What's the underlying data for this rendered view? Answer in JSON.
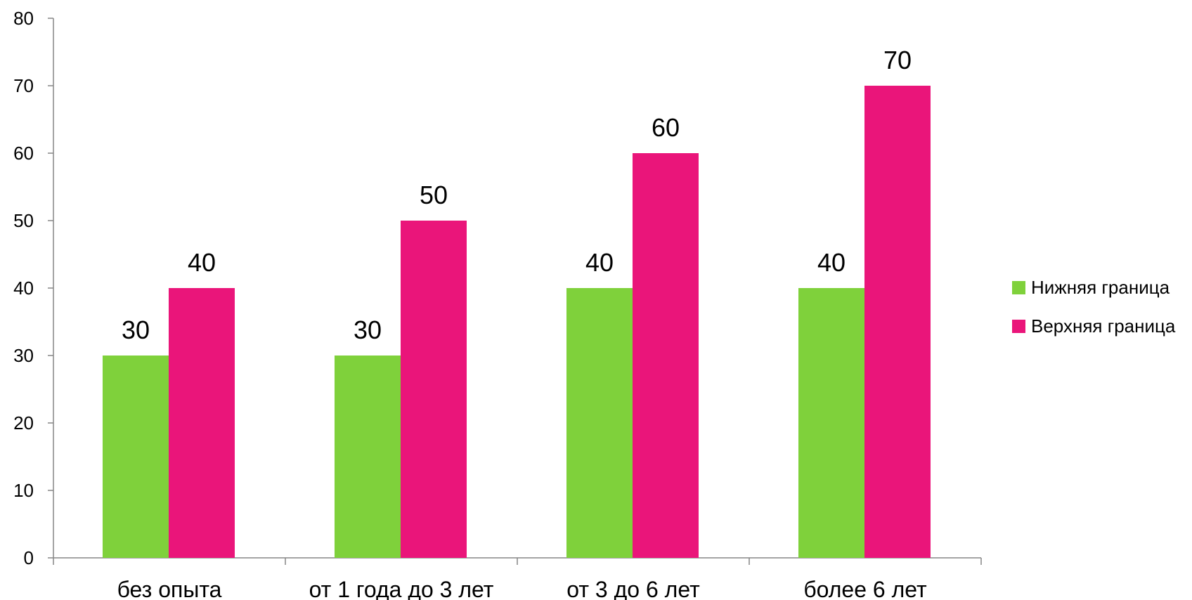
{
  "chart_data": {
    "type": "bar",
    "categories": [
      "без опыта",
      "от 1 года до 3 лет",
      "от 3 до 6 лет",
      "более 6 лет"
    ],
    "series": [
      {
        "name": "Нижняя граница",
        "color": "#7fd13b",
        "values": [
          30,
          30,
          40,
          40
        ]
      },
      {
        "name": "Верхняя граница",
        "color": "#ea157a",
        "values": [
          40,
          50,
          60,
          70
        ]
      }
    ],
    "ylim": [
      0,
      80
    ],
    "yticks": [
      0,
      10,
      20,
      30,
      40,
      50,
      60,
      70,
      80
    ],
    "grid": false,
    "legend_position": "right",
    "data_labels": true
  }
}
